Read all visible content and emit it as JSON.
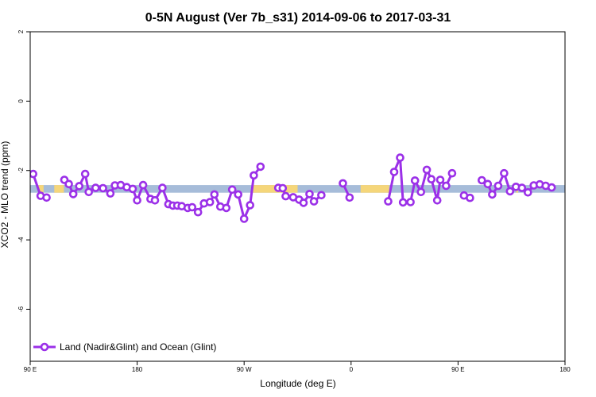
{
  "chart_data": {
    "type": "line",
    "title": "0-5N August (Ver 7b_s31)   2014-09-06 to 2017-03-31",
    "xlabel": "Longitude (deg E)",
    "ylabel": "XCO2 - MLO trend (ppm)",
    "xlim": [
      90,
      450
    ],
    "ylim": [
      -7.5,
      2.0
    ],
    "x_ticks": [
      {
        "value": 90,
        "label": "90 E"
      },
      {
        "value": 162,
        "label": "180"
      },
      {
        "value": 234,
        "label": "90 W"
      },
      {
        "value": 306,
        "label": "0"
      },
      {
        "value": 378,
        "label": "90 E"
      },
      {
        "value": 450,
        "label": "180"
      }
    ],
    "y_ticks": [
      {
        "value": 2,
        "label": "2"
      },
      {
        "value": 0,
        "label": "0"
      },
      {
        "value": -2,
        "label": "-2"
      },
      {
        "value": -4,
        "label": "-4"
      },
      {
        "value": -6,
        "label": "-6"
      }
    ],
    "surface_band": {
      "y_min": -2.64,
      "y_max": -2.42,
      "ocean_color": "#a6bcd9",
      "land_color": "#f5d67a",
      "land_segments": [
        [
          95.6,
          99.0
        ],
        [
          106.2,
          112.7
        ],
        [
          240.0,
          270.0
        ],
        [
          312.4,
          331.6
        ],
        [
          417.1,
          418.4
        ]
      ]
    },
    "series": [
      {
        "name": "Land (Nadir&Glint) and Ocean (Glint)",
        "color": "#9b30e8",
        "segments": [
          [
            [
              92,
              -2.1
            ],
            [
              97,
              -2.73
            ],
            [
              101,
              -2.78
            ]
          ],
          [
            [
              113,
              -2.27
            ],
            [
              116,
              -2.39
            ],
            [
              119,
              -2.68
            ],
            [
              123,
              -2.45
            ],
            [
              127,
              -2.1
            ],
            [
              129.4,
              -2.62
            ],
            [
              134,
              -2.5
            ],
            [
              139,
              -2.51
            ],
            [
              144,
              -2.66
            ],
            [
              147,
              -2.43
            ],
            [
              151,
              -2.42
            ],
            [
              155,
              -2.48
            ],
            [
              159,
              -2.53
            ],
            [
              162,
              -2.86
            ],
            [
              166,
              -2.42
            ],
            [
              171,
              -2.82
            ],
            [
              174,
              -2.86
            ],
            [
              179,
              -2.5
            ],
            [
              183,
              -2.97
            ],
            [
              186,
              -3.01
            ],
            [
              189,
              -3.01
            ],
            [
              192,
              -3.03
            ],
            [
              196,
              -3.08
            ],
            [
              199,
              -3.06
            ],
            [
              203,
              -3.2
            ],
            [
              207,
              -2.95
            ],
            [
              211,
              -2.91
            ],
            [
              214,
              -2.69
            ],
            [
              218,
              -3.04
            ],
            [
              222,
              -3.08
            ],
            [
              226,
              -2.55
            ],
            [
              230,
              -2.69
            ],
            [
              234,
              -3.39
            ],
            [
              238,
              -3.0
            ],
            [
              240.5,
              -2.14
            ],
            [
              245,
              -1.89
            ]
          ],
          [
            [
              257,
              -2.5
            ],
            [
              260,
              -2.51
            ],
            [
              262,
              -2.74
            ],
            [
              267,
              -2.77
            ],
            [
              271,
              -2.84
            ],
            [
              274,
              -2.93
            ],
            [
              278,
              -2.68
            ],
            [
              281,
              -2.89
            ],
            [
              286,
              -2.71
            ]
          ],
          [
            [
              300.5,
              -2.37
            ],
            [
              305,
              -2.78
            ]
          ],
          [
            [
              331,
              -2.89
            ],
            [
              335,
              -2.04
            ],
            [
              339,
              -1.63
            ],
            [
              341,
              -2.92
            ],
            [
              346,
              -2.91
            ],
            [
              349,
              -2.29
            ],
            [
              353,
              -2.62
            ],
            [
              357,
              -1.98
            ],
            [
              360,
              -2.25
            ],
            [
              364,
              -2.86
            ],
            [
              366,
              -2.27
            ],
            [
              370,
              -2.44
            ],
            [
              374,
              -2.08
            ]
          ],
          [
            [
              382,
              -2.72
            ],
            [
              386,
              -2.79
            ]
          ],
          [
            [
              394,
              -2.28
            ],
            [
              398,
              -2.39
            ],
            [
              401,
              -2.69
            ],
            [
              405,
              -2.44
            ],
            [
              409,
              -2.08
            ],
            [
              413,
              -2.6
            ],
            [
              417,
              -2.47
            ],
            [
              421,
              -2.5
            ],
            [
              425,
              -2.63
            ],
            [
              429,
              -2.43
            ],
            [
              433,
              -2.4
            ],
            [
              437,
              -2.44
            ],
            [
              441,
              -2.49
            ]
          ]
        ]
      }
    ],
    "legend": {
      "position": "bottom-left",
      "label": "Land (Nadir&Glint) and Ocean (Glint)"
    }
  }
}
